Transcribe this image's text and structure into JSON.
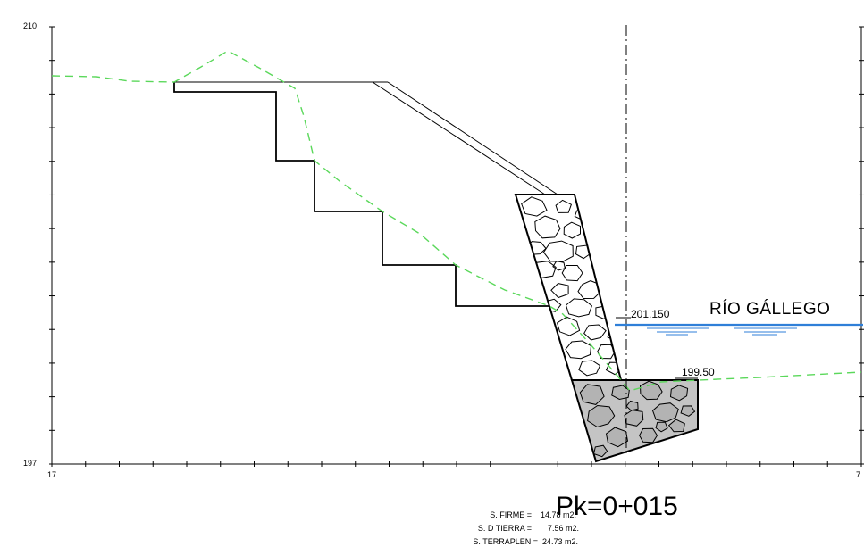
{
  "axes": {
    "y_top": "210",
    "y_bottom": "197",
    "x_left": "17",
    "x_right": "7"
  },
  "annotations": {
    "water_level": "201.150",
    "base_level": "199.50",
    "river_name": "RÍO GÁLLEGO",
    "chainage": "Pk=0+015"
  },
  "areas": [
    {
      "label": "S. FIRME =",
      "value": "14.78 m2."
    },
    {
      "label": "S. D TIERRA =",
      "value": "7.56 m2."
    },
    {
      "label": "S. TERRAPLEN =",
      "value": "24.73 m2."
    }
  ],
  "colors": {
    "ground_line": "#5bd85b",
    "water": "#2f7fd8",
    "concrete_fill": "#c4c4c4",
    "lines": "#000000"
  }
}
